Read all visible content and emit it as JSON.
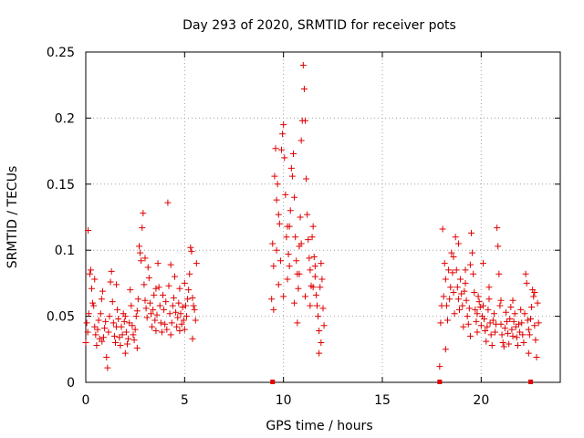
{
  "chart_data": {
    "type": "scatter",
    "title": "Day 293 of 2020, SRMTID for receiver pots",
    "xlabel": "GPS time / hours",
    "ylabel": "SRMTID / TECUs",
    "xlim": [
      0,
      24
    ],
    "ylim": [
      0,
      0.25
    ],
    "xticks": [
      0,
      5,
      10,
      15,
      20
    ],
    "xtick_labels": [
      "0",
      "5",
      "10",
      "15",
      "20"
    ],
    "yticks": [
      0,
      0.05,
      0.1,
      0.15,
      0.2,
      0.25
    ],
    "ytick_labels": [
      "0",
      "0.05",
      "0.1",
      "0.15",
      "0.2",
      "0.25"
    ],
    "grid": true,
    "series": [
      {
        "name": "SRMTID",
        "color": "#e00000",
        "marker": "plus",
        "points": [
          [
            0.0,
            0.03
          ],
          [
            0.05,
            0.045
          ],
          [
            0.1,
            0.038
          ],
          [
            0.15,
            0.052
          ],
          [
            0.2,
            0.082
          ],
          [
            0.25,
            0.085
          ],
          [
            0.3,
            0.071
          ],
          [
            0.35,
            0.06
          ],
          [
            0.4,
            0.058
          ],
          [
            0.45,
            0.042
          ],
          [
            0.5,
            0.036
          ],
          [
            0.55,
            0.028
          ],
          [
            0.6,
            0.04
          ],
          [
            0.65,
            0.047
          ],
          [
            0.7,
            0.033
          ],
          [
            0.75,
            0.052
          ],
          [
            0.8,
            0.063
          ],
          [
            0.85,
            0.069
          ],
          [
            0.9,
            0.034
          ],
          [
            0.95,
            0.041
          ],
          [
            1.0,
            0.046
          ],
          [
            1.05,
            0.019
          ],
          [
            1.1,
            0.011
          ],
          [
            1.15,
            0.038
          ],
          [
            1.2,
            0.05
          ],
          [
            1.25,
            0.076
          ],
          [
            1.3,
            0.084
          ],
          [
            1.35,
            0.061
          ],
          [
            1.4,
            0.045
          ],
          [
            1.45,
            0.035
          ],
          [
            1.5,
            0.03
          ],
          [
            1.55,
            0.042
          ],
          [
            1.6,
            0.055
          ],
          [
            1.65,
            0.048
          ],
          [
            1.7,
            0.034
          ],
          [
            1.75,
            0.028
          ],
          [
            1.8,
            0.042
          ],
          [
            1.85,
            0.036
          ],
          [
            1.9,
            0.052
          ],
          [
            1.95,
            0.046
          ],
          [
            2.0,
            0.05
          ],
          [
            2.05,
            0.038
          ],
          [
            2.1,
            0.029
          ],
          [
            2.15,
            0.033
          ],
          [
            2.2,
            0.045
          ],
          [
            2.25,
            0.07
          ],
          [
            2.3,
            0.058
          ],
          [
            2.35,
            0.043
          ],
          [
            2.4,
            0.036
          ],
          [
            2.45,
            0.032
          ],
          [
            2.5,
            0.04
          ],
          [
            2.55,
            0.05
          ],
          [
            2.6,
            0.054
          ],
          [
            2.65,
            0.063
          ],
          [
            2.7,
            0.103
          ],
          [
            2.75,
            0.098
          ],
          [
            2.8,
            0.092
          ],
          [
            2.85,
            0.117
          ],
          [
            2.9,
            0.128
          ],
          [
            2.95,
            0.074
          ],
          [
            3.0,
            0.062
          ],
          [
            3.05,
            0.056
          ],
          [
            3.1,
            0.049
          ],
          [
            3.15,
            0.087
          ],
          [
            3.2,
            0.079
          ],
          [
            3.25,
            0.06
          ],
          [
            3.3,
            0.052
          ],
          [
            3.35,
            0.042
          ],
          [
            3.4,
            0.055
          ],
          [
            3.45,
            0.066
          ],
          [
            3.5,
            0.047
          ],
          [
            3.55,
            0.039
          ],
          [
            3.6,
            0.051
          ],
          [
            3.65,
            0.09
          ],
          [
            3.7,
            0.072
          ],
          [
            3.75,
            0.058
          ],
          [
            3.8,
            0.045
          ],
          [
            3.85,
            0.038
          ],
          [
            3.9,
            0.066
          ],
          [
            3.95,
            0.055
          ],
          [
            4.0,
            0.044
          ],
          [
            4.05,
            0.061
          ],
          [
            4.1,
            0.04
          ],
          [
            4.15,
            0.136
          ],
          [
            4.2,
            0.073
          ],
          [
            4.25,
            0.052
          ],
          [
            4.3,
            0.036
          ],
          [
            4.35,
            0.045
          ],
          [
            4.4,
            0.058
          ],
          [
            4.45,
            0.064
          ],
          [
            4.5,
            0.08
          ],
          [
            4.55,
            0.053
          ],
          [
            4.6,
            0.042
          ],
          [
            4.65,
            0.049
          ],
          [
            4.7,
            0.06
          ],
          [
            4.75,
            0.039
          ],
          [
            4.8,
            0.052
          ],
          [
            4.85,
            0.044
          ],
          [
            4.9,
            0.057
          ],
          [
            4.95,
            0.047
          ],
          [
            5.0,
            0.075
          ],
          [
            5.05,
            0.058
          ],
          [
            5.1,
            0.05
          ],
          [
            5.15,
            0.063
          ],
          [
            5.2,
            0.07
          ],
          [
            5.25,
            0.082
          ],
          [
            5.3,
            0.102
          ],
          [
            5.35,
            0.099
          ],
          [
            5.4,
            0.064
          ],
          [
            5.45,
            0.058
          ],
          [
            5.5,
            0.055
          ],
          [
            5.55,
            0.047
          ],
          [
            5.6,
            0.09
          ],
          [
            0.12,
            0.115
          ],
          [
            0.45,
            0.078
          ],
          [
            0.82,
            0.031
          ],
          [
            1.55,
            0.074
          ],
          [
            2.0,
            0.022
          ],
          [
            2.6,
            0.026
          ],
          [
            3.0,
            0.094
          ],
          [
            3.55,
            0.071
          ],
          [
            4.3,
            0.089
          ],
          [
            4.75,
            0.071
          ],
          [
            5.0,
            0.04
          ],
          [
            5.4,
            0.033
          ],
          [
            9.4,
            0.063
          ],
          [
            9.45,
            0.105
          ],
          [
            9.5,
            0.088
          ],
          [
            9.55,
            0.156
          ],
          [
            9.6,
            0.177
          ],
          [
            9.65,
            0.138
          ],
          [
            9.7,
            0.15
          ],
          [
            9.75,
            0.127
          ],
          [
            9.8,
            0.12
          ],
          [
            9.85,
            0.092
          ],
          [
            9.9,
            0.176
          ],
          [
            9.95,
            0.188
          ],
          [
            10.0,
            0.195
          ],
          [
            10.05,
            0.17
          ],
          [
            10.1,
            0.142
          ],
          [
            10.15,
            0.11
          ],
          [
            10.2,
            0.078
          ],
          [
            10.25,
            0.097
          ],
          [
            10.3,
            0.118
          ],
          [
            10.35,
            0.13
          ],
          [
            10.4,
            0.162
          ],
          [
            10.45,
            0.156
          ],
          [
            10.5,
            0.173
          ],
          [
            10.55,
            0.14
          ],
          [
            10.6,
            0.11
          ],
          [
            10.65,
            0.092
          ],
          [
            10.7,
            0.082
          ],
          [
            10.75,
            0.071
          ],
          [
            10.8,
            0.103
          ],
          [
            10.85,
            0.125
          ],
          [
            10.9,
            0.183
          ],
          [
            10.95,
            0.198
          ],
          [
            11.0,
            0.24
          ],
          [
            11.05,
            0.222
          ],
          [
            11.1,
            0.198
          ],
          [
            11.15,
            0.154
          ],
          [
            11.2,
            0.127
          ],
          [
            11.25,
            0.108
          ],
          [
            11.3,
            0.094
          ],
          [
            11.35,
            0.085
          ],
          [
            11.4,
            0.073
          ],
          [
            11.45,
            0.11
          ],
          [
            11.5,
            0.118
          ],
          [
            11.55,
            0.095
          ],
          [
            11.6,
            0.08
          ],
          [
            11.65,
            0.066
          ],
          [
            11.7,
            0.058
          ],
          [
            11.75,
            0.05
          ],
          [
            11.8,
            0.039
          ],
          [
            11.85,
            0.072
          ],
          [
            11.9,
            0.09
          ],
          [
            11.95,
            0.078
          ],
          [
            12.0,
            0.056
          ],
          [
            12.05,
            0.043
          ],
          [
            9.5,
            0.055
          ],
          [
            9.75,
            0.074
          ],
          [
            10.0,
            0.065
          ],
          [
            10.3,
            0.088
          ],
          [
            10.55,
            0.06
          ],
          [
            10.8,
            0.082
          ],
          [
            11.1,
            0.065
          ],
          [
            11.35,
            0.058
          ],
          [
            11.6,
            0.088
          ],
          [
            11.8,
            0.022
          ],
          [
            11.9,
            0.03
          ],
          [
            10.7,
            0.045
          ],
          [
            10.2,
            0.118
          ],
          [
            9.65,
            0.1
          ],
          [
            11.5,
            0.072
          ],
          [
            10.9,
            0.105
          ],
          [
            17.9,
            0.012
          ],
          [
            17.95,
            0.045
          ],
          [
            18.0,
            0.058
          ],
          [
            18.05,
            0.116
          ],
          [
            18.1,
            0.065
          ],
          [
            18.15,
            0.09
          ],
          [
            18.2,
            0.078
          ],
          [
            18.25,
            0.058
          ],
          [
            18.3,
            0.047
          ],
          [
            18.35,
            0.085
          ],
          [
            18.4,
            0.063
          ],
          [
            18.45,
            0.072
          ],
          [
            18.5,
            0.098
          ],
          [
            18.55,
            0.083
          ],
          [
            18.6,
            0.068
          ],
          [
            18.65,
            0.052
          ],
          [
            18.7,
            0.11
          ],
          [
            18.75,
            0.085
          ],
          [
            18.8,
            0.072
          ],
          [
            18.85,
            0.063
          ],
          [
            18.9,
            0.055
          ],
          [
            18.95,
            0.078
          ],
          [
            19.0,
            0.067
          ],
          [
            19.05,
            0.058
          ],
          [
            19.1,
            0.042
          ],
          [
            19.15,
            0.069
          ],
          [
            19.2,
            0.075
          ],
          [
            19.25,
            0.062
          ],
          [
            19.3,
            0.05
          ],
          [
            19.35,
            0.044
          ],
          [
            19.4,
            0.056
          ],
          [
            19.45,
            0.089
          ],
          [
            19.5,
            0.113
          ],
          [
            19.55,
            0.098
          ],
          [
            19.6,
            0.082
          ],
          [
            19.65,
            0.068
          ],
          [
            19.7,
            0.055
          ],
          [
            19.75,
            0.046
          ],
          [
            19.8,
            0.052
          ],
          [
            19.85,
            0.065
          ],
          [
            19.9,
            0.061
          ],
          [
            19.95,
            0.057
          ],
          [
            20.0,
            0.043
          ],
          [
            20.05,
            0.05
          ],
          [
            20.1,
            0.058
          ],
          [
            20.15,
            0.048
          ],
          [
            20.2,
            0.039
          ],
          [
            20.25,
            0.031
          ],
          [
            20.3,
            0.042
          ],
          [
            20.35,
            0.055
          ],
          [
            20.4,
            0.063
          ],
          [
            20.45,
            0.045
          ],
          [
            20.5,
            0.036
          ],
          [
            20.55,
            0.028
          ],
          [
            20.6,
            0.047
          ],
          [
            20.65,
            0.052
          ],
          [
            20.7,
            0.038
          ],
          [
            20.75,
            0.044
          ],
          [
            20.8,
            0.117
          ],
          [
            20.85,
            0.103
          ],
          [
            20.9,
            0.082
          ],
          [
            20.95,
            0.058
          ],
          [
            21.0,
            0.044
          ],
          [
            21.05,
            0.036
          ],
          [
            21.1,
            0.03
          ],
          [
            21.15,
            0.027
          ],
          [
            21.2,
            0.041
          ],
          [
            21.25,
            0.053
          ],
          [
            21.3,
            0.046
          ],
          [
            21.35,
            0.037
          ],
          [
            21.4,
            0.029
          ],
          [
            21.45,
            0.048
          ],
          [
            21.5,
            0.057
          ],
          [
            21.55,
            0.04
          ],
          [
            21.6,
            0.035
          ],
          [
            21.65,
            0.046
          ],
          [
            21.7,
            0.052
          ],
          [
            21.75,
            0.042
          ],
          [
            21.8,
            0.034
          ],
          [
            21.85,
            0.028
          ],
          [
            21.9,
            0.044
          ],
          [
            21.95,
            0.038
          ],
          [
            22.0,
            0.055
          ],
          [
            22.05,
            0.045
          ],
          [
            22.1,
            0.036
          ],
          [
            22.15,
            0.03
          ],
          [
            22.2,
            0.052
          ],
          [
            22.25,
            0.082
          ],
          [
            22.3,
            0.075
          ],
          [
            22.35,
            0.047
          ],
          [
            22.4,
            0.04
          ],
          [
            22.45,
            0.036
          ],
          [
            22.5,
            0.048
          ],
          [
            22.55,
            0.057
          ],
          [
            22.6,
            0.07
          ],
          [
            22.65,
            0.065
          ],
          [
            22.7,
            0.043
          ],
          [
            22.75,
            0.032
          ],
          [
            22.8,
            0.019
          ],
          [
            22.85,
            0.06
          ],
          [
            22.9,
            0.045
          ],
          [
            18.2,
            0.025
          ],
          [
            18.6,
            0.095
          ],
          [
            19.2,
            0.085
          ],
          [
            19.8,
            0.038
          ],
          [
            20.4,
            0.072
          ],
          [
            21.0,
            0.062
          ],
          [
            21.6,
            0.062
          ],
          [
            22.4,
            0.022
          ],
          [
            22.7,
            0.068
          ],
          [
            19.45,
            0.035
          ],
          [
            20.1,
            0.09
          ],
          [
            18.85,
            0.105
          ]
        ]
      }
    ],
    "gap_markers_x": [
      9.45,
      17.9,
      22.5
    ]
  }
}
